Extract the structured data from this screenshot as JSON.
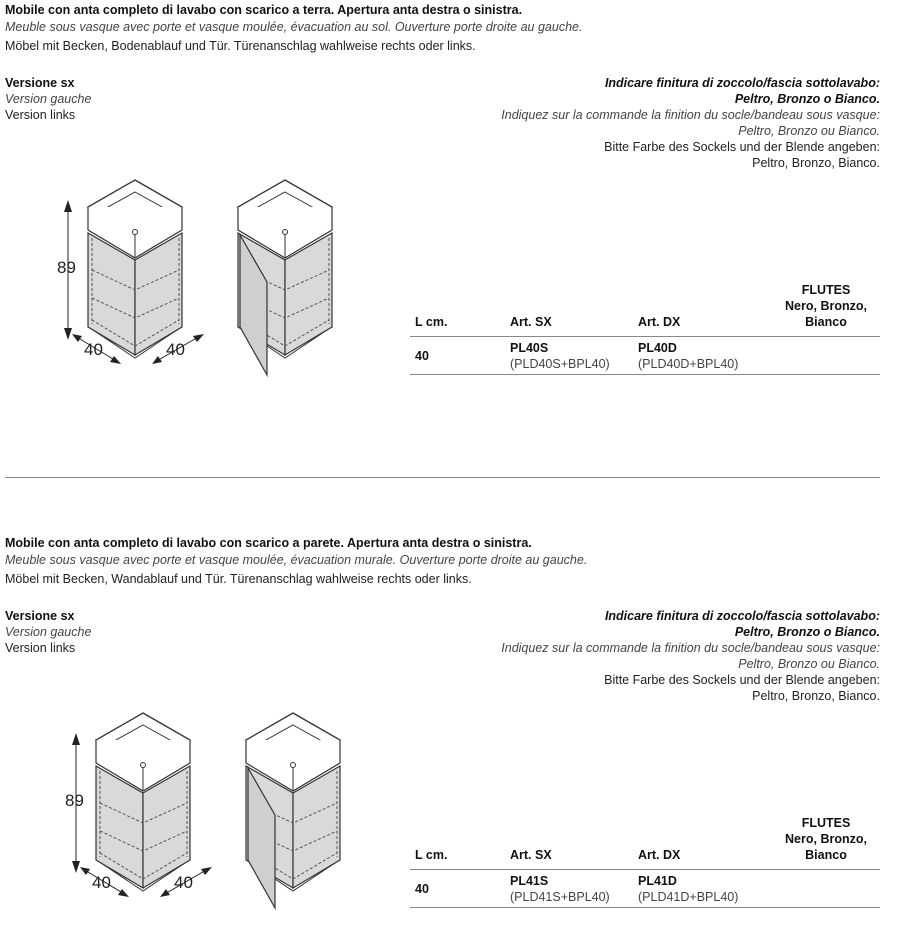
{
  "sections": [
    {
      "title": "Mobile con anta completo di lavabo con scarico a terra. Apertura anta destra o sinistra.",
      "fr": "Meuble sous vasque avec porte et vasque moulée, évacuation au sol. Ouverture porte droite au gauche.",
      "de": "Möbel mit Becken, Bodenablauf und Tür. Türenanschlag wahlweise rechts oder links.",
      "version": [
        "Versione sx",
        "Version gauche",
        "Version links"
      ],
      "finish": [
        "Indicare finitura di zoccolo/fascia sottolavabo:",
        "Peltro, Bronzo o Bianco.",
        "Indiquez sur la commande la finition du socle/bandeau sous vasque:",
        "Peltro, Bronzo ou Bianco.",
        "Bitte Farbe des Sockels und der Blende angeben:",
        "Peltro, Bronzo, Bianco."
      ],
      "dims": {
        "h": "89",
        "w": "40",
        "d": "40"
      },
      "table": {
        "headers": [
          "L cm.",
          "Art. SX",
          "Art. DX",
          "FLUTES",
          "Nero, Bronzo,",
          "Bianco"
        ],
        "row": {
          "l": "40",
          "sx": "PL40S",
          "sx_sub": "(PLD40S+BPL40)",
          "dx": "PL40D",
          "dx_sub": "(PLD40D+BPL40)"
        }
      }
    },
    {
      "title": "Mobile con anta completo di lavabo con scarico a parete. Apertura anta destra o sinistra.",
      "fr": "Meuble sous vasque avec porte et vasque moulée, évacuation murale. Ouverture porte droite au gauche.",
      "de": "Möbel mit Becken, Wandablauf und Tür. Türenanschlag wahlweise rechts oder links.",
      "version": [
        "Versione sx",
        "Version gauche",
        "Version links"
      ],
      "finish": [
        "Indicare finitura di zoccolo/fascia sottolavabo:",
        "Peltro, Bronzo o Bianco.",
        "Indiquez sur la commande la finition du socle/bandeau sous vasque:",
        "Peltro, Bronzo ou Bianco.",
        "Bitte Farbe des Sockels und der Blende angeben:",
        "Peltro, Bronzo, Bianco."
      ],
      "dims": {
        "h": "89",
        "w": "40",
        "d": "40"
      },
      "table": {
        "headers": [
          "L cm.",
          "Art. SX",
          "Art. DX",
          "FLUTES",
          "Nero, Bronzo,",
          "Bianco"
        ],
        "row": {
          "l": "40",
          "sx": "PL41S",
          "sx_sub": "(PLD41S+BPL40)",
          "dx": "PL41D",
          "dx_sub": "(PLD41D+BPL40)"
        }
      }
    }
  ]
}
